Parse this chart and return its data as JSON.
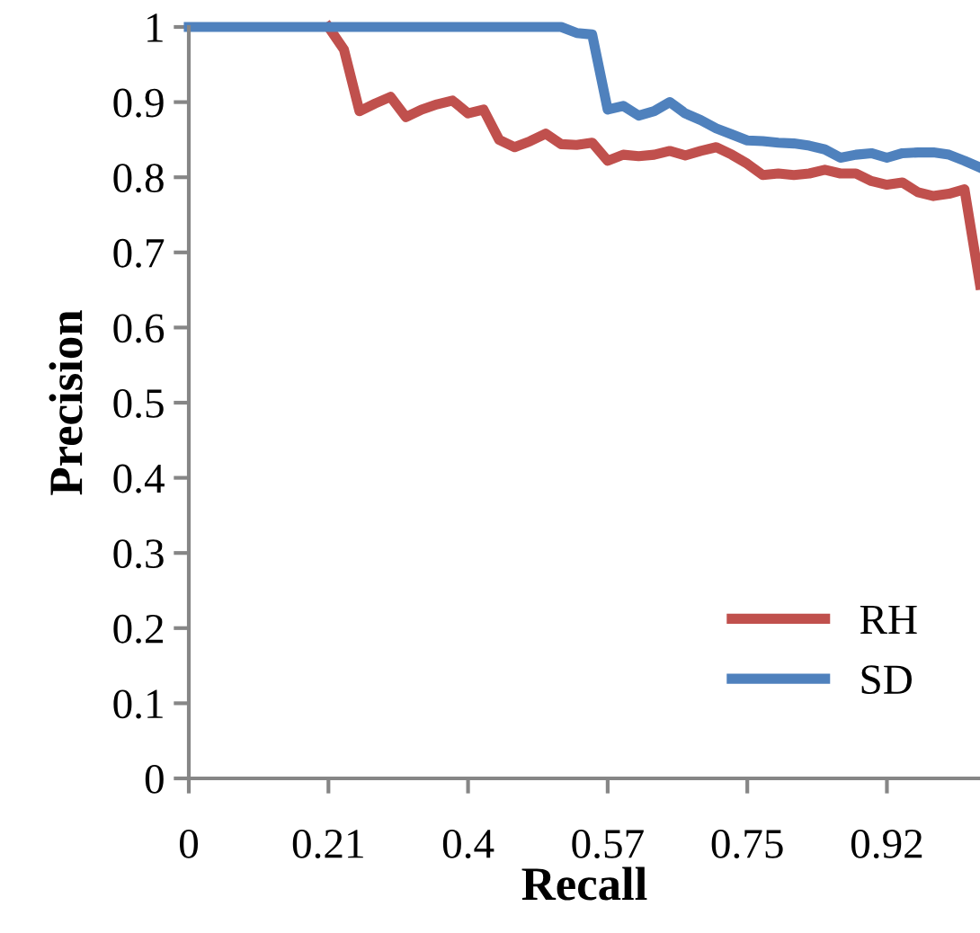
{
  "chart_data": {
    "type": "line",
    "xlabel": "Recall",
    "ylabel": "Precision",
    "categories": [
      "0",
      null,
      null,
      null,
      null,
      null,
      null,
      null,
      null,
      "0.21",
      null,
      null,
      null,
      null,
      null,
      null,
      null,
      null,
      "0.4",
      null,
      null,
      null,
      null,
      null,
      null,
      null,
      null,
      "0.57",
      null,
      null,
      null,
      null,
      null,
      null,
      null,
      null,
      "0.75",
      null,
      null,
      null,
      null,
      null,
      null,
      null,
      null,
      "0.92",
      null,
      null,
      null,
      null,
      null,
      null
    ],
    "series": [
      {
        "name": "RH",
        "color": "#c0504d",
        "values": [
          null,
          null,
          null,
          null,
          null,
          null,
          null,
          null,
          null,
          1,
          0.97,
          0.888,
          0.898,
          0.907,
          0.88,
          0.89,
          0.897,
          0.902,
          0.885,
          0.89,
          0.85,
          0.84,
          0.848,
          0.858,
          0.844,
          0.843,
          0.846,
          0.822,
          0.83,
          0.828,
          0.83,
          0.835,
          0.829,
          0.835,
          0.84,
          0.83,
          0.818,
          0.803,
          0.805,
          0.803,
          0.805,
          0.81,
          0.805,
          0.805,
          0.795,
          0.79,
          0.793,
          0.78,
          0.775,
          0.778,
          0.784,
          0.657
        ]
      },
      {
        "name": "SD",
        "color": "#4f81bd",
        "values": [
          1,
          1,
          1,
          1,
          1,
          1,
          1,
          1,
          1,
          1,
          1,
          1,
          1,
          1,
          1,
          1,
          1,
          1,
          1,
          1,
          1,
          1,
          1,
          1,
          1,
          0.992,
          0.99,
          0.89,
          0.895,
          0.882,
          0.888,
          0.9,
          0.885,
          0.876,
          0.865,
          0.857,
          0.849,
          0.848,
          0.846,
          0.845,
          0.842,
          0.837,
          0.826,
          0.83,
          0.832,
          0.826,
          0.832,
          0.833,
          0.833,
          0.83,
          0.822,
          0.813
        ]
      }
    ],
    "ylim": [
      0,
      1
    ],
    "yticks": [
      0,
      0.1,
      0.2,
      0.3,
      0.4,
      0.5,
      0.6,
      0.7,
      0.8,
      0.9,
      1
    ],
    "grid": false,
    "legend": "bottom right",
    "marker": "none",
    "line_style": "solid"
  }
}
